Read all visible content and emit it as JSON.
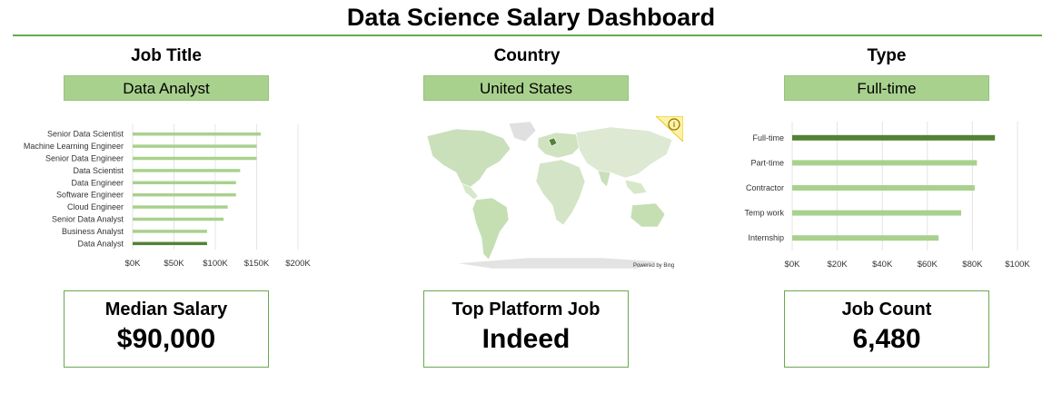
{
  "dashboard": {
    "title": "Data Science Salary Dashboard"
  },
  "filters": {
    "job_title": {
      "label": "Job Title",
      "value": "Data Analyst"
    },
    "country": {
      "label": "Country",
      "value": "United States"
    },
    "type": {
      "label": "Type",
      "value": "Full-time"
    }
  },
  "map": {
    "credit": "Powered by Bing",
    "info_icon": "info-icon"
  },
  "kpis": {
    "median_salary": {
      "label": "Median Salary",
      "value": "$90,000"
    },
    "top_platform": {
      "label": "Top Platform Job",
      "value": "Indeed"
    },
    "job_count": {
      "label": "Job Count",
      "value": "6,480"
    }
  },
  "colors": {
    "accent": "#6aa84f",
    "bar": "#a9d18e",
    "bar_highlight": "#548235",
    "slicer": "#a9d18e"
  },
  "chart_data": [
    {
      "type": "bar",
      "orientation": "horizontal",
      "categories": [
        "Senior Data Scientist",
        "Machine Learning Engineer",
        "Senior Data Engineer",
        "Data Scientist",
        "Data Engineer",
        "Software Engineer",
        "Cloud Engineer",
        "Senior Data Analyst",
        "Business Analyst",
        "Data Analyst"
      ],
      "values": [
        155000,
        150000,
        150000,
        130000,
        125000,
        125000,
        115000,
        110000,
        90000,
        90000
      ],
      "highlight": "Data Analyst",
      "xlim": [
        0,
        200000
      ],
      "ticks": [
        "$0K",
        "$50K",
        "$100K",
        "$150K",
        "$200K"
      ],
      "grid": true
    },
    {
      "type": "bar",
      "orientation": "horizontal",
      "categories": [
        "Full-time",
        "Part-time",
        "Contractor",
        "Temp work",
        "Internship"
      ],
      "values": [
        90000,
        82000,
        81000,
        75000,
        65000
      ],
      "highlight": "Full-time",
      "xlim": [
        0,
        100000
      ],
      "ticks": [
        "$0K",
        "$20K",
        "$40K",
        "$60K",
        "$80K",
        "$100K"
      ],
      "grid": true
    }
  ]
}
